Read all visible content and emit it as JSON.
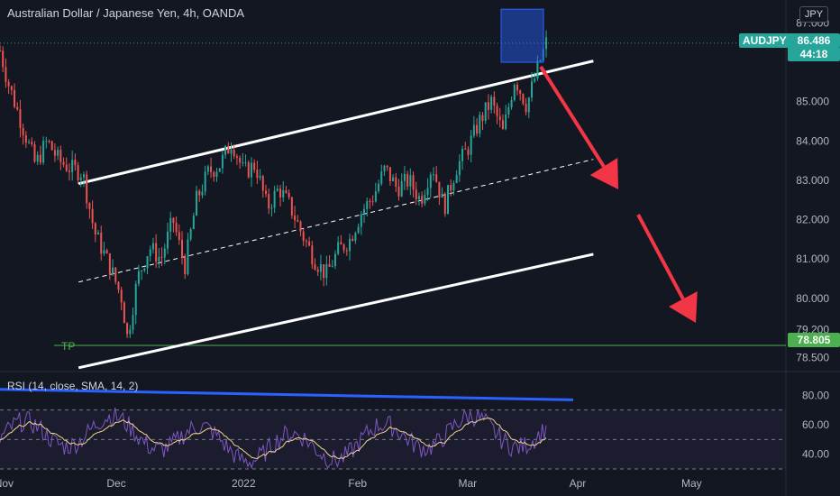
{
  "chart": {
    "title": "Australian Dollar / Japanese Yen, 4h, OANDA",
    "currency": "JPY",
    "symbol_badge": "AUDJPY",
    "last_price": "86.486",
    "countdown": "44:18",
    "tp_label": "TP",
    "tp_value": "78.805",
    "rsi_label": "RSI (14, close, SMA, 14, 2)",
    "colors": {
      "background": "#131722",
      "up": "#26a69a",
      "down": "#ef5350",
      "rsi": "#7e57c2",
      "rsi_ma": "#f0d58a",
      "channel": "#ffffff",
      "arrow": "#f23645",
      "tp": "#4caf50",
      "rsi_trend": "#2962ff",
      "zone": "#2962ff"
    }
  },
  "chart_data": {
    "type": "candlestick",
    "price_axis": {
      "ticks": [
        "87.000",
        "85.000",
        "84.000",
        "83.000",
        "82.000",
        "81.000",
        "80.000",
        "79.200",
        "78.500"
      ],
      "range": [
        78.3,
        87.4
      ]
    },
    "time_axis": {
      "ticks": [
        "Nov",
        "Dec",
        "2022",
        "Feb",
        "Mar",
        "Apr",
        "May"
      ]
    },
    "rsi_axis": {
      "ticks": [
        "80.00",
        "60.00",
        "40.00"
      ],
      "range": [
        30,
        90
      ],
      "levels": [
        70,
        50,
        30
      ]
    },
    "close_path": [
      {
        "t": 0,
        "p": 86.3
      },
      {
        "t": 0.01,
        "p": 85.5
      },
      {
        "t": 0.025,
        "p": 84.6
      },
      {
        "t": 0.045,
        "p": 83.4
      },
      {
        "t": 0.06,
        "p": 84.0
      },
      {
        "t": 0.075,
        "p": 83.5
      },
      {
        "t": 0.09,
        "p": 83.3
      },
      {
        "t": 0.105,
        "p": 83.2
      },
      {
        "t": 0.12,
        "p": 81.7
      },
      {
        "t": 0.14,
        "p": 80.8
      },
      {
        "t": 0.155,
        "p": 80.0
      },
      {
        "t": 0.162,
        "p": 79.0
      },
      {
        "t": 0.175,
        "p": 80.5
      },
      {
        "t": 0.19,
        "p": 81.3
      },
      {
        "t": 0.205,
        "p": 81.0
      },
      {
        "t": 0.22,
        "p": 82.0
      },
      {
        "t": 0.235,
        "p": 80.8
      },
      {
        "t": 0.25,
        "p": 82.5
      },
      {
        "t": 0.265,
        "p": 83.2
      },
      {
        "t": 0.28,
        "p": 83.4
      },
      {
        "t": 0.295,
        "p": 84.0
      },
      {
        "t": 0.31,
        "p": 83.2
      },
      {
        "t": 0.325,
        "p": 83.4
      },
      {
        "t": 0.34,
        "p": 82.3
      },
      {
        "t": 0.355,
        "p": 82.8
      },
      {
        "t": 0.37,
        "p": 82.3
      },
      {
        "t": 0.385,
        "p": 81.6
      },
      {
        "t": 0.4,
        "p": 81.0
      },
      {
        "t": 0.415,
        "p": 80.6
      },
      {
        "t": 0.43,
        "p": 81.2
      },
      {
        "t": 0.445,
        "p": 81.5
      },
      {
        "t": 0.46,
        "p": 82.2
      },
      {
        "t": 0.475,
        "p": 82.6
      },
      {
        "t": 0.49,
        "p": 83.3
      },
      {
        "t": 0.505,
        "p": 82.8
      },
      {
        "t": 0.52,
        "p": 83.0
      },
      {
        "t": 0.535,
        "p": 82.5
      },
      {
        "t": 0.55,
        "p": 83.4
      },
      {
        "t": 0.565,
        "p": 82.3
      },
      {
        "t": 0.58,
        "p": 83.3
      },
      {
        "t": 0.595,
        "p": 83.8
      },
      {
        "t": 0.61,
        "p": 84.5
      },
      {
        "t": 0.625,
        "p": 85.0
      },
      {
        "t": 0.64,
        "p": 84.2
      },
      {
        "t": 0.655,
        "p": 85.6
      },
      {
        "t": 0.67,
        "p": 84.9
      },
      {
        "t": 0.685,
        "p": 85.9
      },
      {
        "t": 0.695,
        "p": 86.49
      }
    ],
    "channel": {
      "upper": [
        {
          "t": 0.16,
          "p": 83.2
        },
        {
          "t": 1.0,
          "p": 87.2
        }
      ],
      "mid": [
        {
          "t": 0.16,
          "p": 80.7
        },
        {
          "t": 1.0,
          "p": 84.7
        }
      ],
      "lower": [
        {
          "t": 0.16,
          "p": 78.5
        },
        {
          "t": 1.0,
          "p": 82.2
        }
      ]
    },
    "tp_level": 78.805,
    "zone": {
      "p_top": 87.35,
      "p_bottom": 86.0
    },
    "rsi_trend": [
      {
        "t": 0,
        "v": 84
      },
      {
        "t": 1,
        "v": 80
      }
    ]
  }
}
